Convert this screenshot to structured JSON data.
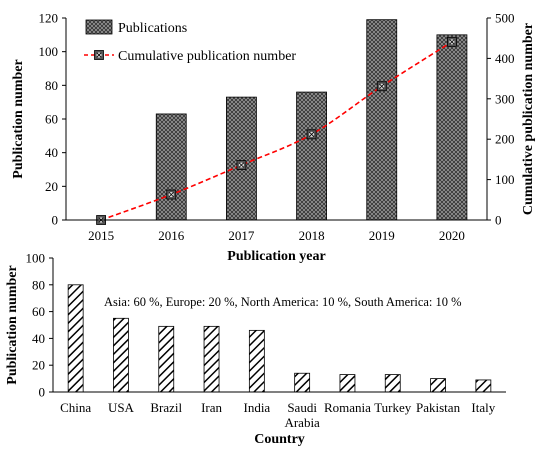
{
  "chart_data": [
    {
      "type": "bar",
      "categories": [
        "2015",
        "2016",
        "2017",
        "2018",
        "2019",
        "2020"
      ],
      "series": [
        {
          "name": "Publications",
          "type": "bar",
          "axis": "left",
          "values": [
            0,
            63,
            73,
            76,
            119,
            110
          ]
        },
        {
          "name": "Cumulative publication number",
          "type": "line",
          "axis": "right",
          "values": [
            0,
            63,
            136,
            212,
            331,
            441
          ]
        }
      ],
      "xlabel": "Publication year",
      "ylabel": "Publication number",
      "y2label": "Cumulative publication number",
      "ylim": [
        0,
        120
      ],
      "yticks": [
        0,
        20,
        40,
        60,
        80,
        100,
        120
      ],
      "y2lim": [
        0,
        500
      ],
      "y2ticks": [
        0,
        100,
        200,
        300,
        400,
        500
      ],
      "legend": "top-left",
      "grid": false,
      "bar_fill": "crosshatch",
      "line_color": "#ff0000"
    },
    {
      "type": "bar",
      "categories": [
        "China",
        "USA",
        "Brazil",
        "Iran",
        "India",
        "Saudi Arabia",
        "Romania",
        "Turkey",
        "Pakistan",
        "Italy"
      ],
      "values": [
        80,
        55,
        49,
        49,
        46,
        14,
        13,
        13,
        10,
        9
      ],
      "xlabel": "Country",
      "ylabel": "Publication number",
      "ylim": [
        0,
        100
      ],
      "yticks": [
        0,
        20,
        40,
        60,
        80,
        100
      ],
      "grid": false,
      "bar_fill": "diagonal-stripes",
      "annotation": "Asia: 60 %, Europe: 20 %, North America: 10 %, South America: 10 %"
    }
  ]
}
